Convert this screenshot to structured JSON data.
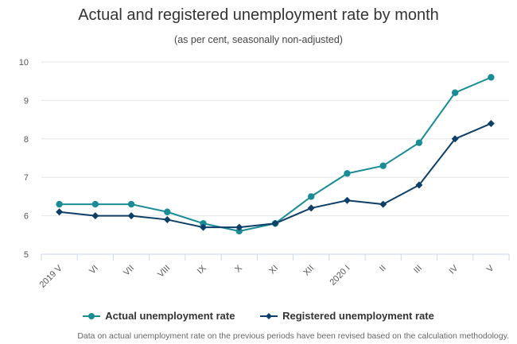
{
  "chart_data": {
    "type": "line",
    "title": "Actual and registered unemployment rate by month",
    "subtitle": "(as per cent, seasonally non-adjusted)",
    "categories": [
      "2019 V",
      "VI",
      "VII",
      "VIII",
      "IX",
      "X",
      "XI",
      "XII",
      "2020 I",
      "II",
      "III",
      "IV",
      "V"
    ],
    "series": [
      {
        "name": "Actual unemployment rate",
        "color": "#1a8c96",
        "marker": "circle",
        "values": [
          6.3,
          6.3,
          6.3,
          6.1,
          5.8,
          5.6,
          5.8,
          6.5,
          7.1,
          7.3,
          7.9,
          9.2,
          9.6
        ]
      },
      {
        "name": "Registered unemployment rate",
        "color": "#0e3f66",
        "marker": "diamond",
        "values": [
          6.1,
          6.0,
          6.0,
          5.9,
          5.7,
          5.7,
          5.8,
          6.2,
          6.4,
          6.3,
          6.8,
          8.0,
          8.4
        ]
      }
    ],
    "ylim": [
      5,
      10
    ],
    "yticks": [
      5,
      6,
      7,
      8,
      9,
      10
    ],
    "grid": true,
    "legend": "bottom-center",
    "note": "Data on actual unemployment rate on the previous periods have been revised based on the calculation methodology."
  }
}
